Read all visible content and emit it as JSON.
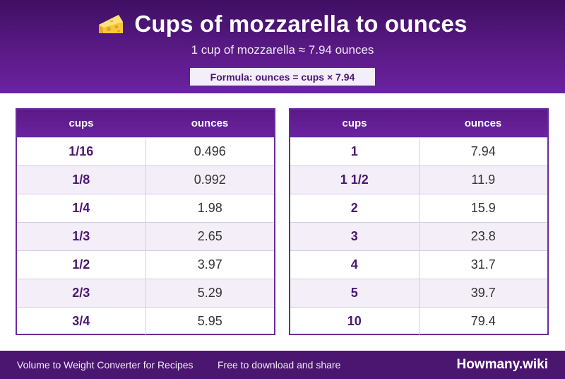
{
  "header": {
    "title": "Cups of mozzarella to ounces",
    "subtitle": "1 cup of mozzarella ≈ 7.94 ounces",
    "formula": "Formula: ounces = cups × 7.94",
    "icon": "cheese-icon"
  },
  "tables": [
    {
      "headers": [
        "cups",
        "ounces"
      ],
      "rows": [
        [
          "1/16",
          "0.496"
        ],
        [
          "1/8",
          "0.992"
        ],
        [
          "1/4",
          "1.98"
        ],
        [
          "1/3",
          "2.65"
        ],
        [
          "1/2",
          "3.97"
        ],
        [
          "2/3",
          "5.29"
        ],
        [
          "3/4",
          "5.95"
        ]
      ]
    },
    {
      "headers": [
        "cups",
        "ounces"
      ],
      "rows": [
        [
          "1",
          "7.94"
        ],
        [
          "1 1/2",
          "11.9"
        ],
        [
          "2",
          "15.9"
        ],
        [
          "3",
          "23.8"
        ],
        [
          "4",
          "31.7"
        ],
        [
          "5",
          "39.7"
        ],
        [
          "10",
          "79.4"
        ]
      ]
    }
  ],
  "footer": {
    "left_text": "Volume to Weight Converter for Recipes",
    "middle_text": "Free to download and share",
    "brand": "Howmany.wiki"
  },
  "colors": {
    "primary": "#5a1a86",
    "accent_text": "#4b1773",
    "row_alt": "#f3eef8"
  }
}
